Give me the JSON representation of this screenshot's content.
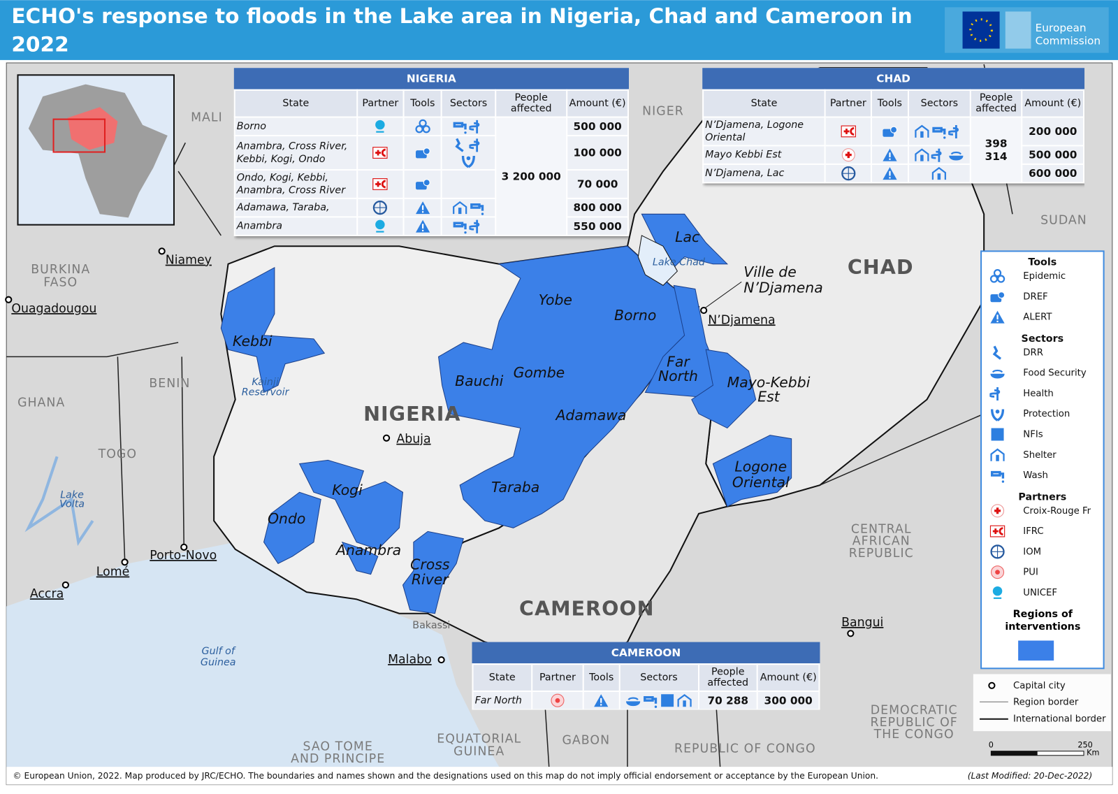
{
  "header": {
    "title": "ECHO's response to floods in the Lake area in Nigeria, Chad and Cameroon in 2022",
    "logo": "European Commission"
  },
  "tables": [
    {
      "title": "NIGERIA",
      "columns": [
        "State",
        "Partner",
        "Tools",
        "Sectors",
        "People affected",
        "Amount (€)"
      ],
      "people_affected": "3 200 000",
      "rows": [
        {
          "state": "Borno",
          "amount": "500 000"
        },
        {
          "state": "Anambra, Cross River, Kebbi, Kogi, Ondo",
          "amount": "100 000"
        },
        {
          "state": "Ondo, Kogi, Kebbi, Anambra, Cross River",
          "amount": "70 000"
        },
        {
          "state": "Adamawa, Taraba,",
          "amount": "800 000"
        },
        {
          "state": "Anambra",
          "amount": "550 000"
        }
      ]
    },
    {
      "title": "CHAD",
      "columns": [
        "State",
        "Partner",
        "Tools",
        "Sectors",
        "People affected",
        "Amount (€)"
      ],
      "people_affected": "398 314",
      "rows": [
        {
          "state": "N’Djamena, Logone Oriental",
          "amount": "200 000"
        },
        {
          "state": "Mayo Kebbi Est",
          "amount": "500 000"
        },
        {
          "state": "N’Djamena, Lac",
          "amount": "600 000"
        }
      ]
    },
    {
      "title": "CAMEROON",
      "columns": [
        "State",
        "Partner",
        "Tools",
        "Sectors",
        "People affected",
        "Amount (€)"
      ],
      "rows": [
        {
          "state": "Far North",
          "people_affected": "70 288",
          "amount": "300 000"
        }
      ]
    }
  ],
  "map_labels": {
    "countries": [
      "MALI",
      "NIGER",
      "SUDAN",
      [
        "BURKINA",
        "FASO"
      ],
      "BENIN",
      "GHANA",
      "TOGO",
      "NIGERIA",
      "CHAD",
      "CAMEROON",
      [
        "CENTRAL",
        "AFRICAN",
        "REPUBLIC"
      ],
      [
        "DEMOCRATIC",
        "REPUBLIC OF",
        "THE CONGO"
      ],
      "REPUBLIC OF CONGO",
      "GABON",
      [
        "EQUATORIAL",
        "GUINEA"
      ],
      [
        "SAO TOME",
        "AND PRINCIPE"
      ]
    ],
    "cities": [
      "Niamey",
      "Ouagadougou",
      "Abuja",
      "N’Djamena",
      "Porto-Novo",
      "Lomé",
      "Accra",
      "Malabo",
      "Bangui"
    ],
    "places": [
      "Bakassi",
      [
        "Ville de",
        "N’Djamena"
      ]
    ],
    "regions": [
      "Kebbi",
      "Yobe",
      "Borno",
      "Bauchi",
      "Gombe",
      "Adamawa",
      [
        "Far",
        "North"
      ],
      [
        "Mayo-Kebbi",
        "Est"
      ],
      "Lac",
      [
        "Logone",
        "Oriental"
      ],
      "Taraba",
      "Kogi",
      "Ondo",
      "Anambra",
      [
        "Cross",
        "River"
      ]
    ],
    "water": [
      "Lake Chad",
      [
        "Kainji",
        "Reservoir"
      ],
      [
        "Lake",
        "Volta"
      ],
      [
        "Gulf of",
        "Guinea"
      ]
    ]
  },
  "legend": {
    "sections": [
      {
        "title": "Tools",
        "items": [
          "Epidemic",
          "DREF",
          "ALERT"
        ]
      },
      {
        "title": "Sectors",
        "items": [
          "DRR",
          "Food Security",
          "Health",
          "Protection",
          "NFIs",
          "Shelter",
          "Wash"
        ]
      },
      {
        "title": "Partners",
        "items": [
          "Croix-Rouge Fr",
          "IFRC",
          "IOM",
          "PUI",
          "UNICEF"
        ]
      }
    ],
    "regions_title": "Regions of interventions",
    "symbols": [
      "Capital city",
      "Region border",
      "International border"
    ]
  },
  "scale": {
    "labels": [
      "0",
      "250"
    ],
    "unit": "Km"
  },
  "footer": {
    "text": "© European Union, 2022. Map produced by JRC/ECHO. The boundaries and names shown and the designations used on this map do not imply official endorsement or acceptance by the European Union.",
    "modified": "(Last Modified: 20-Dec-2022)"
  }
}
